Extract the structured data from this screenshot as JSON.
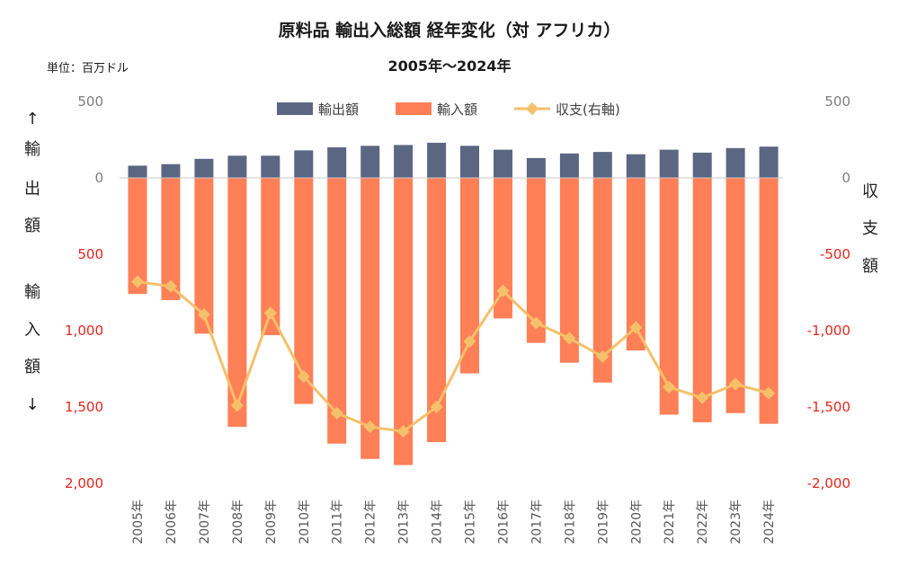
{
  "header": {
    "title": "原料品 輸出入総額 経年変化（対 アフリカ）",
    "subtitle": "2005年～2024年",
    "unit": "単位：百万ドル"
  },
  "axes": {
    "left_title_export": [
      "↑",
      "輸",
      "出",
      "額"
    ],
    "left_title_import": [
      "輸",
      "入",
      "額",
      "↓"
    ],
    "right_title": [
      "収",
      "支",
      "額"
    ],
    "left_ticks": [
      {
        "value": 500,
        "label": "500",
        "color": "gray"
      },
      {
        "value": 0,
        "label": "0",
        "color": "gray"
      },
      {
        "value": -500,
        "label": "500",
        "color": "red"
      },
      {
        "value": -1000,
        "label": "1,000",
        "color": "red"
      },
      {
        "value": -1500,
        "label": "1,500",
        "color": "red"
      },
      {
        "value": -2000,
        "label": "2,000",
        "color": "red"
      }
    ],
    "right_ticks": [
      {
        "value": 500,
        "label": "500",
        "color": "gray"
      },
      {
        "value": 0,
        "label": "0",
        "color": "gray"
      },
      {
        "value": -500,
        "label": "-500",
        "color": "red"
      },
      {
        "value": -1000,
        "label": "-1,000",
        "color": "red"
      },
      {
        "value": -1500,
        "label": "-1,500",
        "color": "red"
      },
      {
        "value": -2000,
        "label": "-2,000",
        "color": "red"
      }
    ]
  },
  "colors": {
    "export": "#5b6682",
    "import": "#ff7f57",
    "balance": "#f5c06a",
    "zero_line": "#c8c8c8"
  },
  "chart_data": {
    "type": "bar",
    "categories": [
      "2005年",
      "2006年",
      "2007年",
      "2008年",
      "2009年",
      "2010年",
      "2011年",
      "2012年",
      "2013年",
      "2014年",
      "2015年",
      "2016年",
      "2017年",
      "2018年",
      "2019年",
      "2020年",
      "2021年",
      "2022年",
      "2023年",
      "2024年"
    ],
    "ylim": [
      -2000,
      500
    ],
    "legend_position": "top-center",
    "grid": false,
    "series": [
      {
        "name": "輸出額",
        "type": "bar",
        "axis": "left",
        "values": [
          80,
          90,
          125,
          145,
          145,
          180,
          200,
          210,
          215,
          230,
          210,
          185,
          130,
          160,
          170,
          155,
          185,
          165,
          195,
          205
        ]
      },
      {
        "name": "輸入額",
        "type": "bar",
        "axis": "left",
        "values": [
          -760,
          -800,
          -1020,
          -1630,
          -1030,
          -1480,
          -1740,
          -1840,
          -1880,
          -1730,
          -1280,
          -920,
          -1080,
          -1210,
          -1340,
          -1130,
          -1550,
          -1600,
          -1540,
          -1610
        ]
      },
      {
        "name": "収支(右軸)",
        "type": "line",
        "axis": "right",
        "values": [
          -680,
          -710,
          -895,
          -1490,
          -885,
          -1300,
          -1540,
          -1630,
          -1660,
          -1500,
          -1070,
          -740,
          -950,
          -1050,
          -1170,
          -980,
          -1370,
          -1440,
          -1350,
          -1410
        ]
      }
    ]
  }
}
